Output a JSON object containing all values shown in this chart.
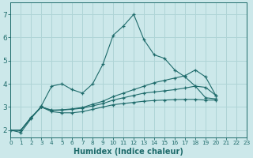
{
  "title": "",
  "xlabel": "Humidex (Indice chaleur)",
  "ylabel": "",
  "background_color": "#cce8ea",
  "grid_color": "#afd4d6",
  "line_color": "#1e6b6b",
  "x_ticks": [
    0,
    1,
    2,
    3,
    4,
    5,
    6,
    7,
    8,
    9,
    10,
    11,
    12,
    13,
    14,
    15,
    16,
    17,
    18,
    19,
    20,
    21,
    22,
    23
  ],
  "x_tick_labels": [
    "0",
    "1",
    "2",
    "3",
    "4",
    "5",
    "6",
    "7",
    "8",
    "9",
    "10",
    "11",
    "12",
    "13",
    "14",
    "15",
    "16",
    "17",
    "18",
    "19",
    "20",
    "21",
    "22",
    "23"
  ],
  "y_ticks": [
    2,
    3,
    4,
    5,
    6,
    7
  ],
  "xlim": [
    0,
    23
  ],
  "ylim": [
    1.7,
    7.5
  ],
  "series": [
    [
      2.0,
      1.9,
      2.5,
      3.05,
      3.9,
      4.0,
      3.75,
      3.6,
      4.0,
      4.85,
      6.1,
      6.5,
      7.0,
      5.9,
      5.25,
      5.1,
      4.6,
      4.3,
      3.9,
      3.4,
      3.35
    ],
    [
      2.0,
      2.0,
      2.55,
      3.0,
      2.8,
      2.75,
      2.75,
      2.8,
      2.9,
      3.0,
      3.1,
      3.15,
      3.2,
      3.25,
      3.28,
      3.3,
      3.32,
      3.33,
      3.33,
      3.3,
      3.3
    ],
    [
      2.0,
      2.0,
      2.55,
      3.0,
      2.85,
      2.87,
      2.9,
      2.95,
      3.05,
      3.15,
      3.3,
      3.4,
      3.5,
      3.6,
      3.65,
      3.7,
      3.75,
      3.82,
      3.9,
      3.85,
      3.5
    ],
    [
      2.0,
      2.0,
      2.55,
      3.0,
      2.87,
      2.88,
      2.92,
      2.98,
      3.12,
      3.25,
      3.45,
      3.6,
      3.75,
      3.9,
      4.05,
      4.15,
      4.25,
      4.35,
      4.6,
      4.3,
      3.5
    ]
  ],
  "series_x": [
    [
      0,
      1,
      2,
      3,
      4,
      5,
      6,
      7,
      8,
      9,
      10,
      11,
      12,
      13,
      14,
      15,
      16,
      17,
      18,
      19,
      20
    ],
    [
      0,
      1,
      2,
      3,
      4,
      5,
      6,
      7,
      8,
      9,
      10,
      11,
      12,
      13,
      14,
      15,
      16,
      17,
      18,
      19,
      20
    ],
    [
      0,
      1,
      2,
      3,
      4,
      5,
      6,
      7,
      8,
      9,
      10,
      11,
      12,
      13,
      14,
      15,
      16,
      17,
      18,
      19,
      20
    ],
    [
      0,
      1,
      2,
      3,
      4,
      5,
      6,
      7,
      8,
      9,
      10,
      11,
      12,
      13,
      14,
      15,
      16,
      17,
      18,
      19,
      20
    ]
  ]
}
